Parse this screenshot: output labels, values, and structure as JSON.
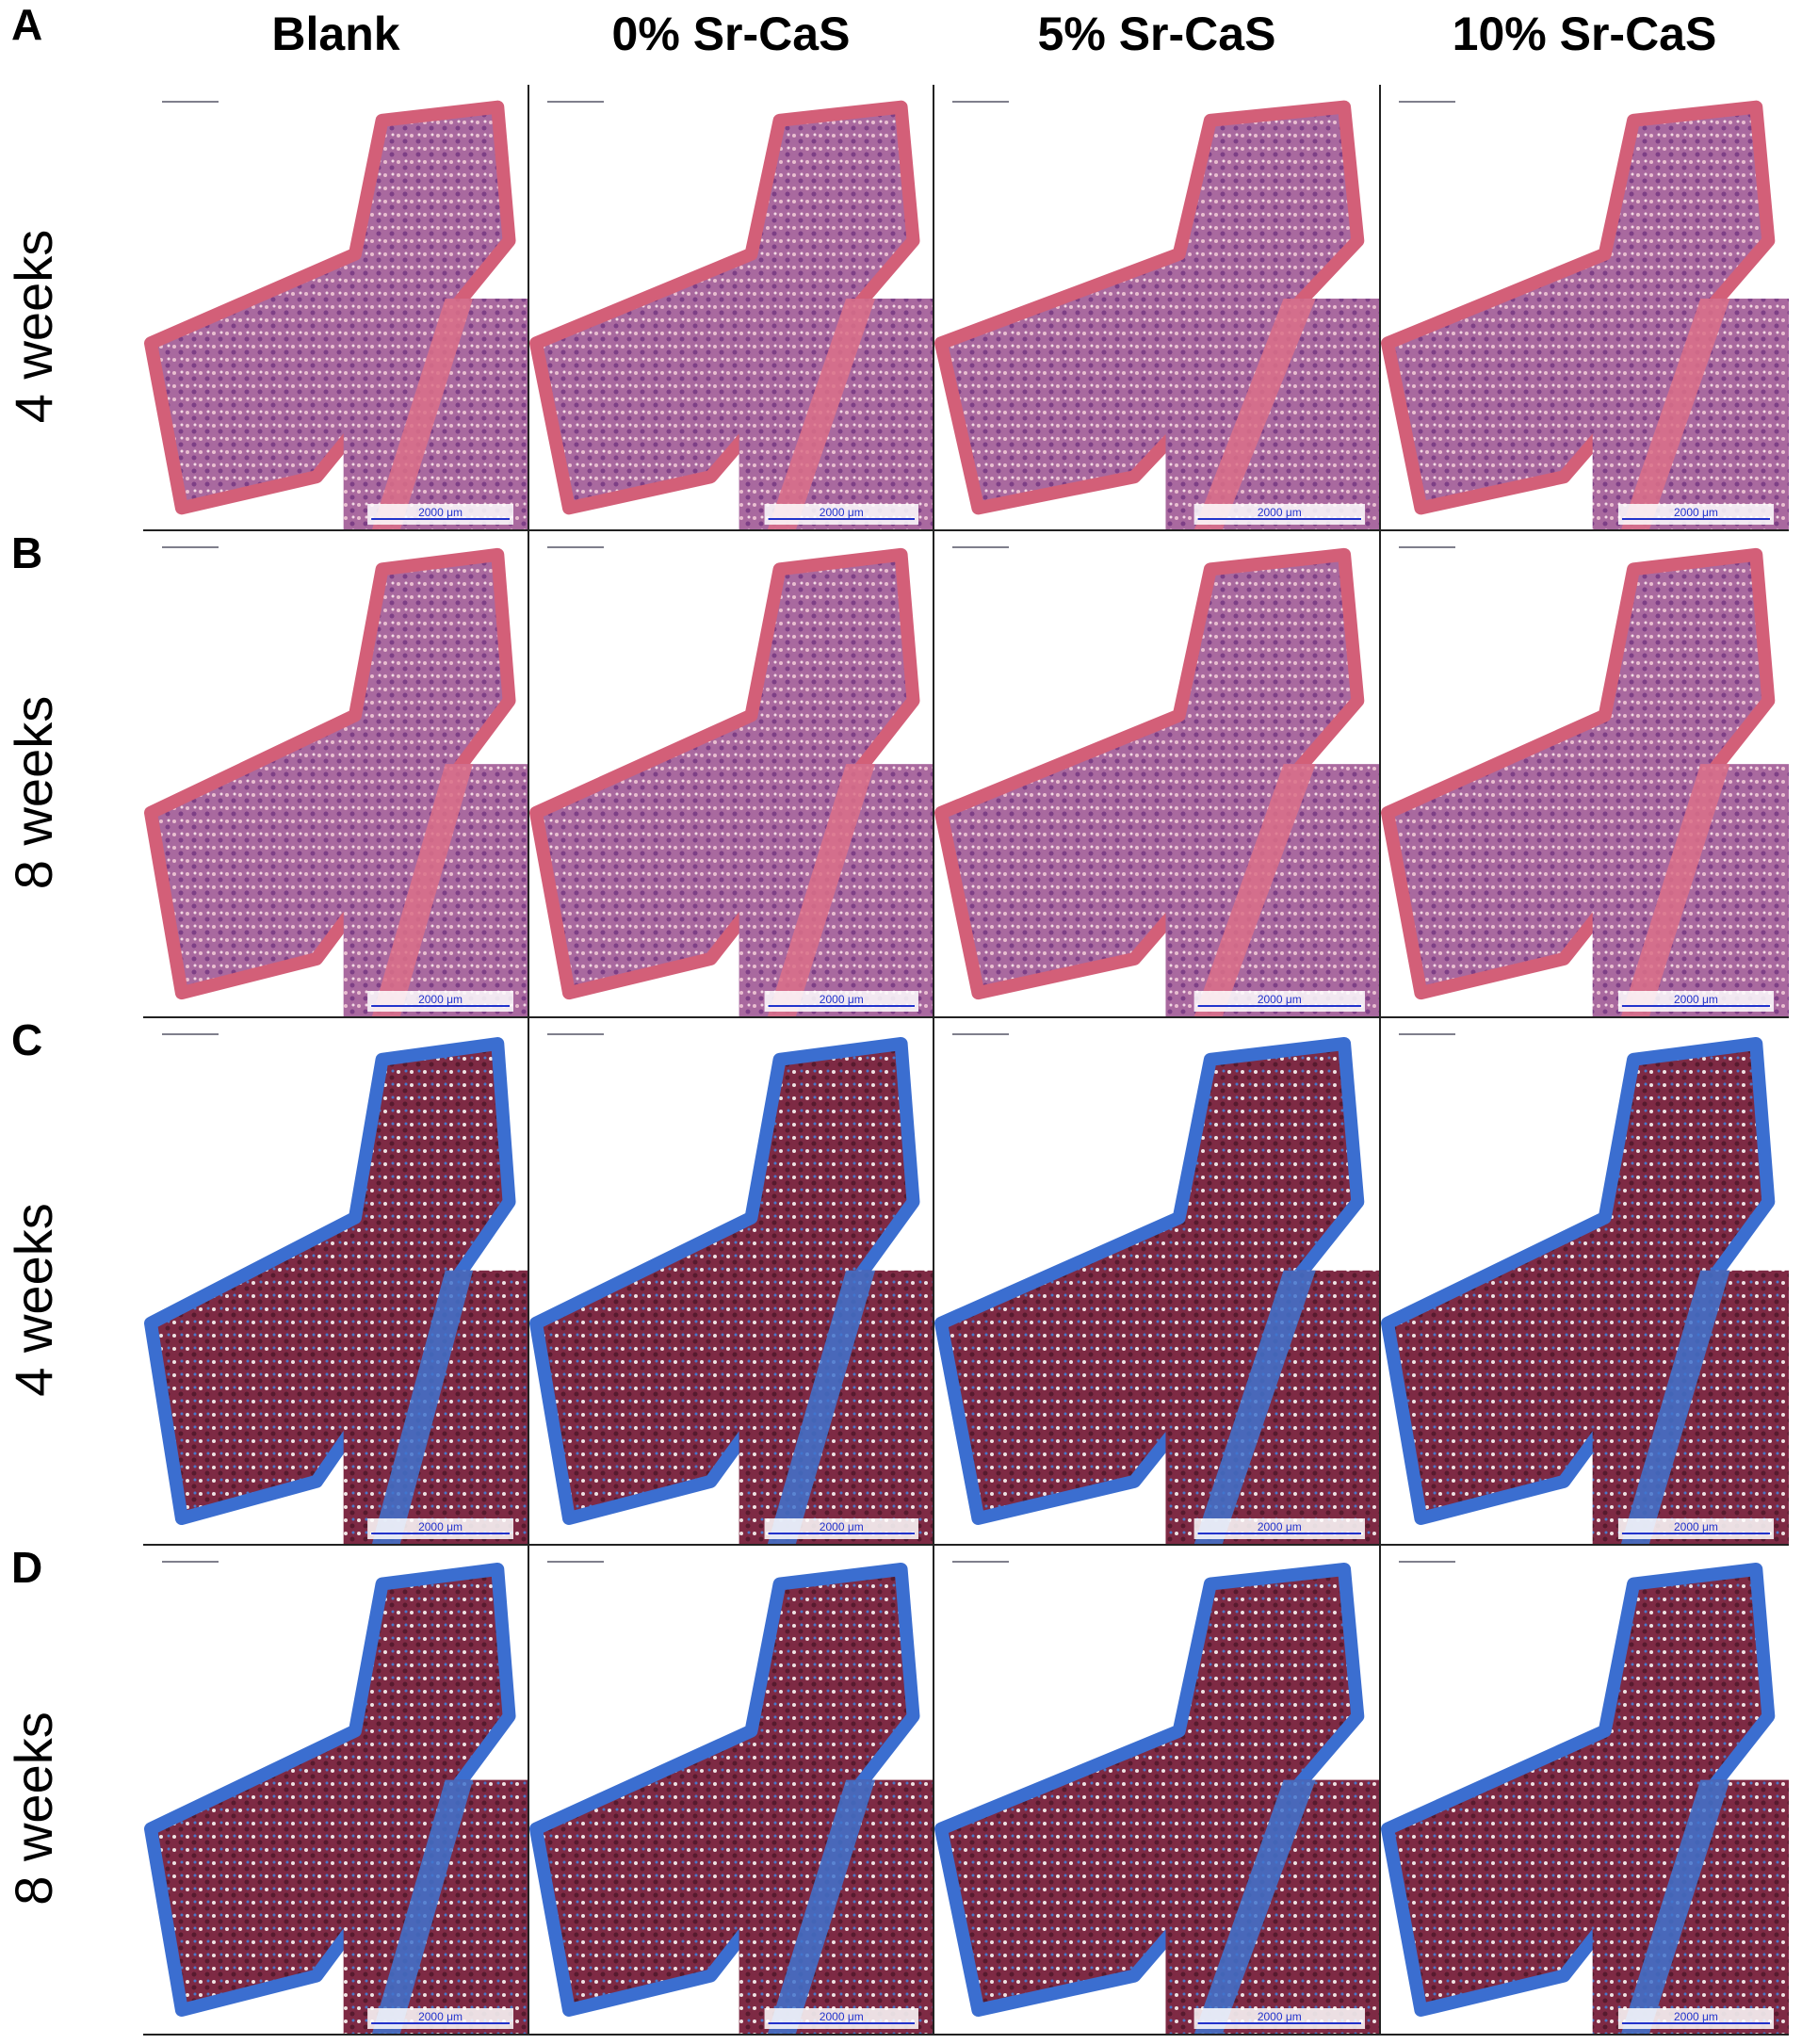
{
  "columns": [
    "Blank",
    "0% Sr-CaS",
    "5% Sr-CaS",
    "10% Sr-CaS"
  ],
  "rows": [
    {
      "letter": "A",
      "label": "4 weeks",
      "cells": [
        {
          "scale_bar": "2000 μm"
        },
        {
          "scale_bar": "2000 μm"
        },
        {
          "scale_bar": "2000 μm"
        },
        {
          "scale_bar": "2000 μm"
        }
      ]
    },
    {
      "letter": "B",
      "label": "8 weeks",
      "cells": [
        {
          "scale_bar": "2000 μm"
        },
        {
          "scale_bar": "2000 μm"
        },
        {
          "scale_bar": "2000 μm"
        },
        {
          "scale_bar": "2000 μm"
        }
      ]
    },
    {
      "letter": "C",
      "label": "4 weeks",
      "cells": [
        {
          "scale_bar": "2000 μm"
        },
        {
          "scale_bar": "2000 μm"
        },
        {
          "scale_bar": "2000 μm"
        },
        {
          "scale_bar": "2000 μm"
        }
      ]
    },
    {
      "letter": "D",
      "label": "8 weeks",
      "cells": [
        {
          "scale_bar": "2000 μm"
        },
        {
          "scale_bar": "2000 μm"
        },
        {
          "scale_bar": "2000 μm"
        },
        {
          "scale_bar": "2000 μm"
        }
      ]
    }
  ]
}
